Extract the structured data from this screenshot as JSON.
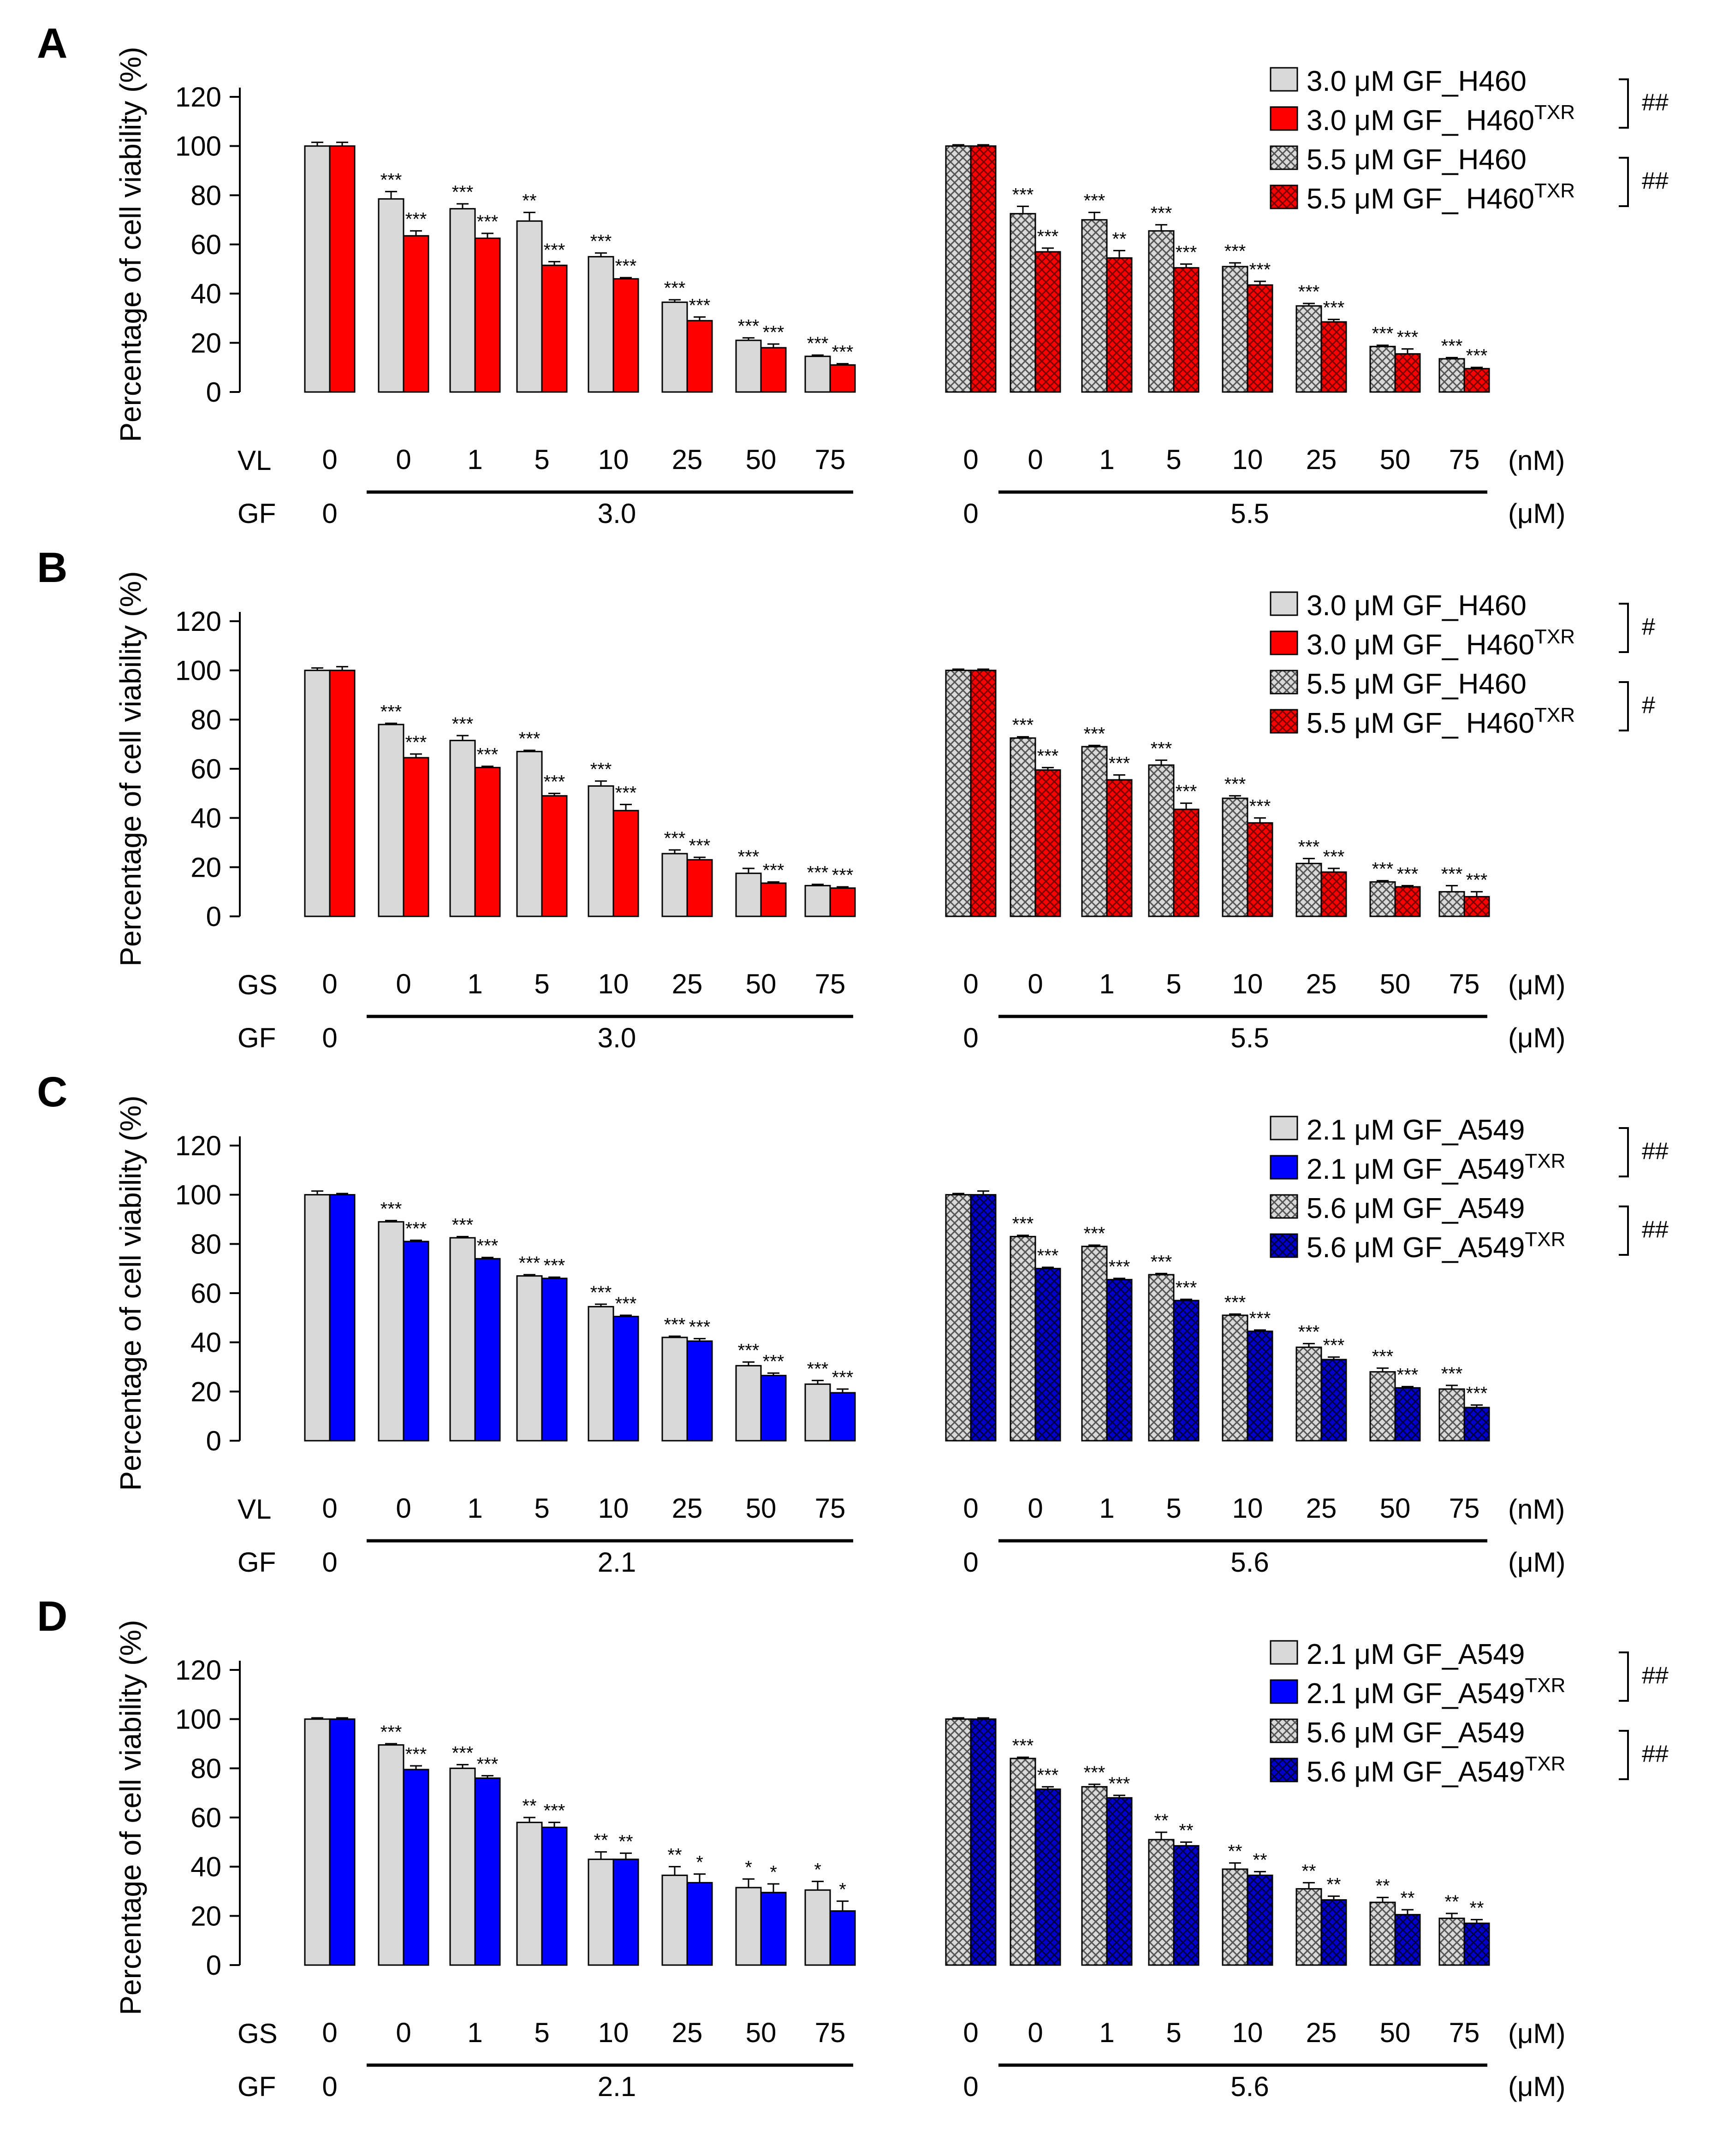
{
  "figure": {
    "common": {
      "ylabel": "Percentage of cell viability (%)",
      "yticks": [
        "0",
        "20",
        "40",
        "60",
        "80",
        "100",
        "120"
      ],
      "ylim": [
        0,
        120
      ],
      "conc_labels": [
        "0",
        "0",
        "1",
        "5",
        "10",
        "25",
        "50",
        "75"
      ]
    },
    "colors": {
      "parental_fill": "#d9d9d9",
      "red": "#ff0000",
      "dark_red": "#cc0000",
      "blue": "#0000ff",
      "dark_blue": "#00008b",
      "axis": "#000000"
    }
  },
  "chart_data": [
    {
      "type": "bar",
      "panel": "A",
      "row1_label": "VL",
      "row2_label": "GF",
      "group_left": {
        "gf": "3.0",
        "series": [
          {
            "name": "3.0 μM GF_H460",
            "values": [
              100,
              78.5,
              74.5,
              69.5,
              55,
              36.5,
              21,
              14.5
            ],
            "errors": [
              1.5,
              3,
              2,
              3.5,
              1.5,
              1,
              1,
              0.5
            ],
            "sig": [
              "",
              "***",
              "***",
              "**",
              "***",
              "***",
              "***",
              "***"
            ]
          },
          {
            "name": "3.0 μM GF_ H460TXR",
            "values": [
              100,
              63.5,
              62.5,
              51.5,
              46,
              29,
              18,
              11
            ],
            "errors": [
              1.5,
              2,
              2,
              1.5,
              0.5,
              1.5,
              1.5,
              0.5
            ],
            "sig": [
              "",
              "***",
              "***",
              "***",
              "***",
              "***",
              "***",
              "***"
            ]
          }
        ]
      },
      "group_right": {
        "gf": "5.5",
        "series": [
          {
            "name": "5.5 μM GF_H460",
            "values": [
              100,
              72.5,
              70,
              65.5,
              51,
              35,
              18.5,
              13.5
            ],
            "errors": [
              0.5,
              3,
              3,
              2.5,
              1.5,
              1,
              0.5,
              0.5
            ],
            "sig": [
              "",
              "***",
              "***",
              "***",
              "***",
              "***",
              "***",
              "***"
            ]
          },
          {
            "name": "5.5 μM GF_ H460TXR",
            "values": [
              100,
              57,
              54.5,
              50.5,
              43.5,
              28.5,
              15.5,
              9.5
            ],
            "errors": [
              0.5,
              1.5,
              3,
              1.5,
              1.5,
              1,
              2,
              0.5
            ],
            "sig": [
              "",
              "***",
              "**",
              "***",
              "***",
              "***",
              "***",
              "***"
            ]
          }
        ]
      },
      "row1_unit": "(nM)",
      "row2_unit": "(μM)",
      "legend": [
        {
          "main": "3.0 μM GF_H460",
          "sup": ""
        },
        {
          "main": "3.0 μM GF_ H460",
          "sup": "TXR"
        },
        {
          "main": "5.5 μM GF_H460",
          "sup": ""
        },
        {
          "main": "5.5 μM GF_ H460",
          "sup": "TXR"
        }
      ],
      "bracket_marks": [
        "##",
        "##"
      ]
    },
    {
      "type": "bar",
      "panel": "B",
      "row1_label": "GS",
      "row2_label": "GF",
      "group_left": {
        "gf": "3.0",
        "series": [
          {
            "name": "3.0 μM GF_H460",
            "values": [
              100,
              78,
              71.5,
              67,
              53,
              25.5,
              17.5,
              12.5
            ],
            "errors": [
              1,
              0.5,
              2,
              0.5,
              2,
              1.5,
              2,
              0.5
            ],
            "sig": [
              "",
              "***",
              "***",
              "***",
              "***",
              "***",
              "***",
              "***"
            ]
          },
          {
            "name": "3.0 μM GF_ H460TXR",
            "values": [
              100,
              64.5,
              60.5,
              49,
              43,
              23,
              13.5,
              11.5
            ],
            "errors": [
              1.5,
              1.5,
              0.5,
              1,
              2.5,
              1,
              0.5,
              0.5
            ],
            "sig": [
              "",
              "***",
              "***",
              "***",
              "***",
              "***",
              "***",
              "***"
            ]
          }
        ]
      },
      "group_right": {
        "gf": "5.5",
        "series": [
          {
            "name": "5.5 μM GF_H460",
            "values": [
              100,
              72.5,
              69,
              61.5,
              48,
              21.5,
              14,
              10
            ],
            "errors": [
              0.5,
              0.5,
              0.5,
              2,
              1,
              2,
              0.5,
              2.5
            ],
            "sig": [
              "",
              "***",
              "***",
              "***",
              "***",
              "***",
              "***",
              "***"
            ]
          },
          {
            "name": "5.5 μM GF_ H460TXR",
            "values": [
              100,
              59.5,
              55.5,
              43.5,
              38,
              18,
              12,
              8
            ],
            "errors": [
              0.5,
              1,
              2,
              2.5,
              2,
              1.5,
              0.5,
              2
            ],
            "sig": [
              "",
              "***",
              "***",
              "***",
              "***",
              "***",
              "***",
              "***"
            ]
          }
        ]
      },
      "row1_unit": "(μM)",
      "row2_unit": "(μM)",
      "legend": [
        {
          "main": "3.0 μM GF_H460",
          "sup": ""
        },
        {
          "main": "3.0 μM GF_ H460",
          "sup": "TXR"
        },
        {
          "main": "5.5 μM GF_H460",
          "sup": ""
        },
        {
          "main": "5.5 μM GF_ H460",
          "sup": "TXR"
        }
      ],
      "bracket_marks": [
        "#",
        "#"
      ]
    },
    {
      "type": "bar",
      "panel": "C",
      "row1_label": "VL",
      "row2_label": "GF",
      "group_left": {
        "gf": "2.1",
        "series": [
          {
            "name": "2.1 μM GF_A549",
            "values": [
              100,
              89,
              82.5,
              67,
              54.5,
              42,
              30.5,
              23
            ],
            "errors": [
              1.5,
              0.5,
              0.5,
              0.5,
              1,
              0.5,
              1.5,
              1.5
            ],
            "sig": [
              "",
              "***",
              "***",
              "***",
              "***",
              "***",
              "***",
              "***"
            ]
          },
          {
            "name": "2.1 μM GF_A549TXR",
            "values": [
              100,
              81,
              74,
              66,
              50.5,
              40.5,
              26.5,
              19.5
            ],
            "errors": [
              0.5,
              0.5,
              0.5,
              0.5,
              0.5,
              1,
              1,
              1.5
            ],
            "sig": [
              "",
              "***",
              "***",
              "***",
              "***",
              "***",
              "***",
              "***"
            ]
          }
        ]
      },
      "group_right": {
        "gf": "5.6",
        "series": [
          {
            "name": "5.6 μM GF_A549",
            "values": [
              100,
              83,
              79,
              67.5,
              51,
              38,
              28,
              21
            ],
            "errors": [
              0.5,
              0.5,
              0.5,
              0.5,
              0.5,
              1.5,
              1.5,
              1.5
            ],
            "sig": [
              "",
              "***",
              "***",
              "***",
              "***",
              "***",
              "***",
              "***"
            ]
          },
          {
            "name": "5.6 μM GF_A549TXR",
            "values": [
              100,
              70,
              65.5,
              57,
              44.5,
              33,
              21.5,
              13.5
            ],
            "errors": [
              1.5,
              0.5,
              0.5,
              0.5,
              0.5,
              1,
              0.5,
              1
            ],
            "sig": [
              "",
              "***",
              "***",
              "***",
              "***",
              "***",
              "***",
              "***"
            ]
          }
        ]
      },
      "row1_unit": "(nM)",
      "row2_unit": "(μM)",
      "legend": [
        {
          "main": "2.1 μM GF_A549",
          "sup": ""
        },
        {
          "main": "2.1 μM GF_A549",
          "sup": "TXR"
        },
        {
          "main": "5.6 μM GF_A549",
          "sup": ""
        },
        {
          "main": "5.6 μM GF_A549",
          "sup": "TXR"
        }
      ],
      "bracket_marks": [
        "##",
        "##"
      ]
    },
    {
      "type": "bar",
      "panel": "D",
      "row1_label": "GS",
      "row2_label": "GF",
      "group_left": {
        "gf": "2.1",
        "series": [
          {
            "name": "2.1 μM GF_A549",
            "values": [
              100,
              89.5,
              80,
              58,
              43,
              36.5,
              31.5,
              30.5
            ],
            "errors": [
              0.5,
              0.5,
              1.5,
              2,
              3,
              3.5,
              3.5,
              3.5
            ],
            "sig": [
              "",
              "***",
              "***",
              "**",
              "**",
              "**",
              "*",
              "*"
            ]
          },
          {
            "name": "2.1 μM GF_A549TXR",
            "values": [
              100,
              79.5,
              76,
              56,
              43,
              33.5,
              29.5,
              22
            ],
            "errors": [
              0.5,
              1.5,
              1,
              2,
              2.5,
              3.5,
              3.5,
              4
            ],
            "sig": [
              "",
              "***",
              "***",
              "***",
              "**",
              "*",
              "*",
              "*"
            ]
          }
        ]
      },
      "group_right": {
        "gf": "5.6",
        "series": [
          {
            "name": "5.6 μM GF_A549",
            "values": [
              100,
              84,
              72.5,
              51,
              39,
              31,
              25.5,
              19
            ],
            "errors": [
              0.5,
              0.5,
              1,
              3,
              2.5,
              2.5,
              2,
              2
            ],
            "sig": [
              "",
              "***",
              "***",
              "**",
              "**",
              "**",
              "**",
              "**"
            ]
          },
          {
            "name": "5.6 μM GF_A549TXR",
            "values": [
              100,
              71.5,
              68,
              48.5,
              36.5,
              26.5,
              20.5,
              17
            ],
            "errors": [
              0.5,
              1,
              1,
              1.5,
              1.5,
              1.5,
              2,
              1.5
            ],
            "sig": [
              "",
              "***",
              "***",
              "**",
              "**",
              "**",
              "**",
              "**"
            ]
          }
        ]
      },
      "row1_unit": "(μM)",
      "row2_unit": "(μM)",
      "legend": [
        {
          "main": "2.1 μM GF_A549",
          "sup": ""
        },
        {
          "main": "2.1 μM GF_A549",
          "sup": "TXR"
        },
        {
          "main": "5.6 μM GF_A549",
          "sup": ""
        },
        {
          "main": "5.6 μM GF_A549",
          "sup": "TXR"
        }
      ],
      "bracket_marks": [
        "##",
        "##"
      ]
    }
  ]
}
